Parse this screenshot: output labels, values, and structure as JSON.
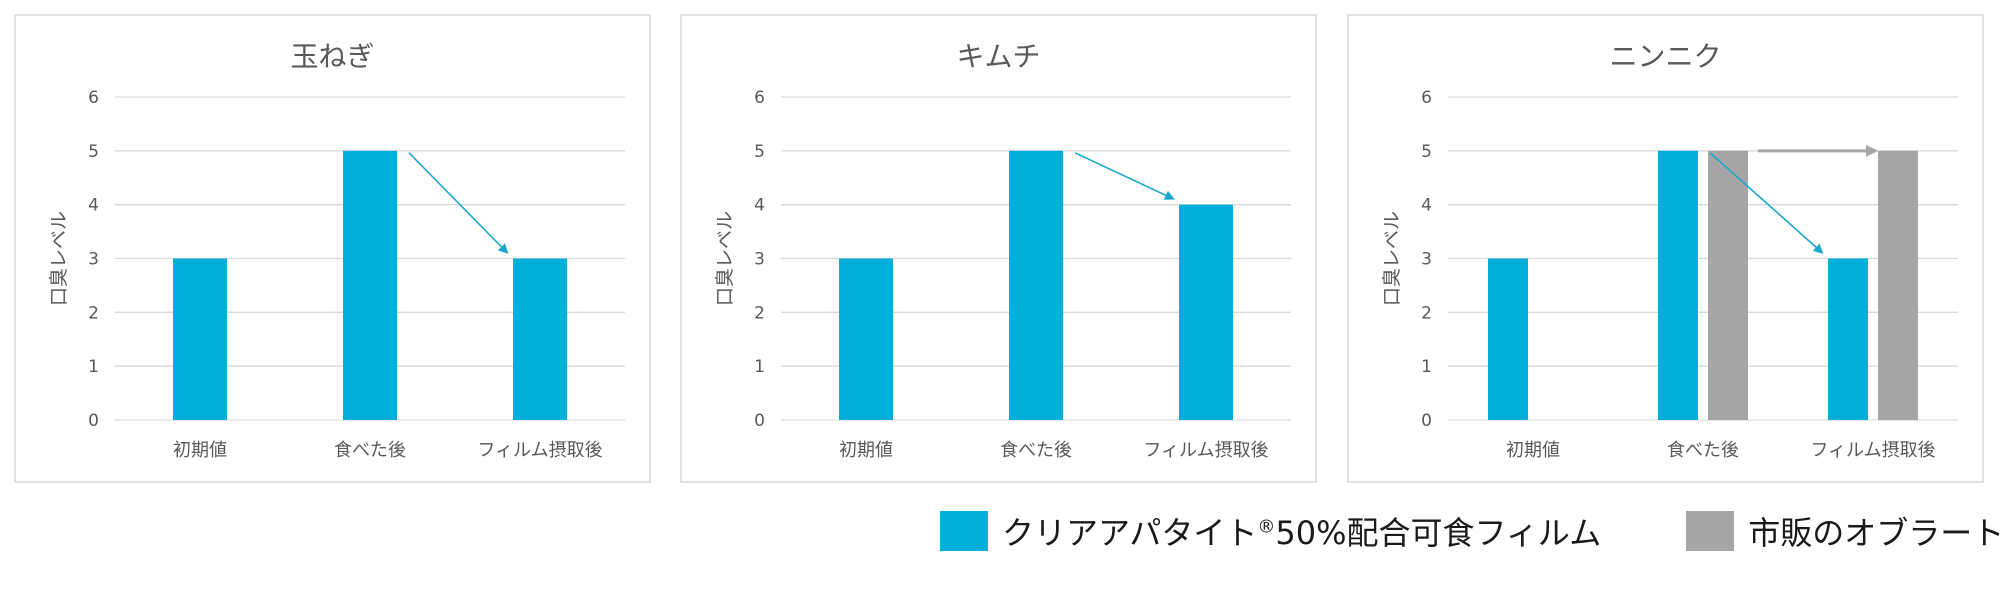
{
  "colors": {
    "film": "#00b0db",
    "wafer": "#a6a6a6",
    "arrow_film": "#1aa7cc",
    "arrow_wafer": "#a6a6a6"
  },
  "legend": {
    "film_label_pre": "クリアアパタイト",
    "film_label_sup": "®",
    "film_label_post": "50%配合可食フィルム",
    "wafer_label": "市販のオブラート"
  },
  "chart_data": [
    {
      "type": "bar",
      "title": "玉ねぎ",
      "ylabel": "口臭レベル",
      "ylim": [
        0,
        6
      ],
      "yticks": [
        "0",
        "1",
        "2",
        "3",
        "4",
        "5",
        "6"
      ],
      "categories": [
        "初期値",
        "食べた後",
        "フィルム摂取後"
      ],
      "series": [
        {
          "name": "クリアアパタイト®50%配合可食フィルム",
          "values": [
            3,
            5,
            3
          ]
        }
      ],
      "annotations": [
        {
          "type": "arrow",
          "from": [
            "食べた後",
            5
          ],
          "to": [
            "フィルム摂取後",
            3
          ]
        }
      ]
    },
    {
      "type": "bar",
      "title": "キムチ",
      "ylabel": "口臭レベル",
      "ylim": [
        0,
        6
      ],
      "yticks": [
        "0",
        "1",
        "2",
        "3",
        "4",
        "5",
        "6"
      ],
      "categories": [
        "初期値",
        "食べた後",
        "フィルム摂取後"
      ],
      "series": [
        {
          "name": "クリアアパタイト®50%配合可食フィルム",
          "values": [
            3,
            5,
            4
          ]
        }
      ],
      "annotations": [
        {
          "type": "arrow",
          "from": [
            "食べた後",
            5
          ],
          "to": [
            "フィルム摂取後",
            4
          ]
        }
      ]
    },
    {
      "type": "bar",
      "title": "ニンニク",
      "ylabel": "口臭レベル",
      "ylim": [
        0,
        6
      ],
      "yticks": [
        "0",
        "1",
        "2",
        "3",
        "4",
        "5",
        "6"
      ],
      "categories": [
        "初期値",
        "食べた後",
        "フィルム摂取後"
      ],
      "series": [
        {
          "name": "クリアアパタイト®50%配合可食フィルム",
          "values": [
            3,
            5,
            3
          ]
        },
        {
          "name": "市販のオブラート",
          "values": [
            null,
            5,
            5
          ]
        }
      ],
      "annotations": [
        {
          "type": "arrow",
          "series": 0,
          "from": [
            "食べた後",
            5
          ],
          "to": [
            "フィルム摂取後",
            3
          ]
        },
        {
          "type": "arrow",
          "series": 1,
          "from": [
            "食べた後",
            5
          ],
          "to": [
            "フィルム摂取後",
            5
          ]
        }
      ]
    }
  ]
}
